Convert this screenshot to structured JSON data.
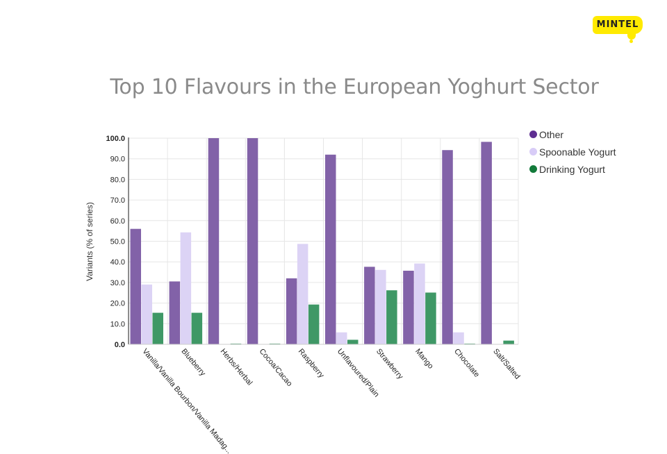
{
  "brand": {
    "logo_text": "MINTEL",
    "logo_color": "#ffea00"
  },
  "header": {
    "title": "Top 10 Flavours in the European Yoghurt Sector"
  },
  "legend": {
    "items": [
      {
        "label": "Other",
        "color": "#5e2e91"
      },
      {
        "label": "Spoonable Yogurt",
        "color": "#d8ccf7"
      },
      {
        "label": "Drinking Yogurt",
        "color": "#127a3a"
      }
    ]
  },
  "chart_data": {
    "type": "bar",
    "title": "Top 10 Flavours in the European Yoghurt Sector",
    "xlabel": "",
    "ylabel": "Variants (% of series)",
    "ylim": [
      0,
      100
    ],
    "yticks": [
      "0.0",
      "10.0",
      "20.0",
      "30.0",
      "40.0",
      "50.0",
      "60.0",
      "70.0",
      "80.0",
      "90.0",
      "100.0"
    ],
    "grid": true,
    "legend_position": "right",
    "categories": [
      "Vanilla/Vanilla Bourbon/Vanilla Madag...",
      "Blueberry",
      "Herbs/Herbal",
      "Cocoa/Cacao",
      "Raspberry",
      "Unflavoured/Plain",
      "Strawberry",
      "Mango",
      "Chocolate",
      "Salt/Salted"
    ],
    "series": [
      {
        "name": "Other",
        "color": "#8262a8",
        "values": [
          56.0,
          30.5,
          100.0,
          100.0,
          32.0,
          92.0,
          37.6,
          35.7,
          94.2,
          98.2
        ]
      },
      {
        "name": "Spoonable Yogurt",
        "color": "#dcd3f5",
        "values": [
          29.0,
          54.3,
          0.0,
          0.0,
          48.7,
          5.8,
          36.1,
          39.2,
          5.8,
          0.0
        ]
      },
      {
        "name": "Drinking Yogurt",
        "color": "#3f9866",
        "values": [
          15.3,
          15.3,
          0.3,
          0.3,
          19.3,
          2.2,
          26.2,
          25.1,
          0.3,
          1.8
        ]
      }
    ]
  }
}
